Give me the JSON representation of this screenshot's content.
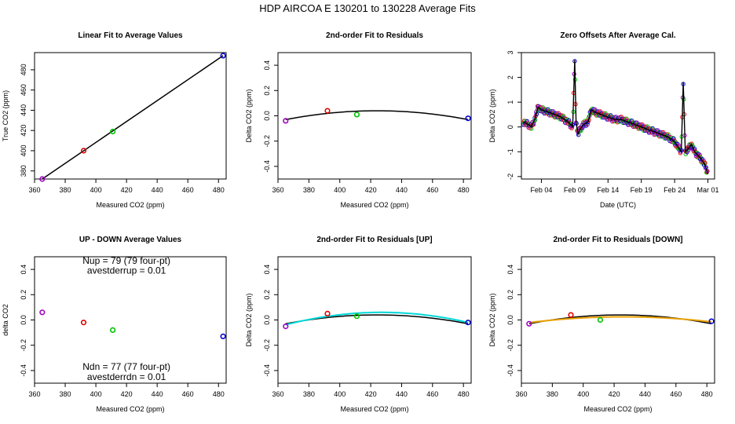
{
  "figure": {
    "title": "HDP    AIRCOA E   130201 to 130228   Average Fits"
  },
  "chart_data": [
    {
      "type": "scatter",
      "title": "Linear Fit to Average Values",
      "xlabel": "Measured CO2 (ppm)",
      "ylabel": "True CO2 (ppm)",
      "xlim": [
        360,
        485
      ],
      "ylim": [
        372,
        497
      ],
      "xticks": [
        360,
        380,
        400,
        420,
        440,
        460,
        480
      ],
      "xtick_labels": [
        "360",
        "380",
        "400",
        "420",
        "440",
        "460",
        "480"
      ],
      "yticks": [
        380,
        400,
        420,
        440,
        460,
        480
      ],
      "ytick_labels": [
        "380",
        "400",
        "420",
        "440",
        "460",
        "480"
      ],
      "points": [
        {
          "x": 365,
          "y": 372,
          "color": "#a000c0"
        },
        {
          "x": 392,
          "y": 400,
          "color": "#e00000"
        },
        {
          "x": 411,
          "y": 419,
          "color": "#00c000"
        },
        {
          "x": 483,
          "y": 494,
          "color": "#0000d0"
        }
      ],
      "lines": [
        {
          "name": "linear fit",
          "x": [
            365,
            483
          ],
          "y": [
            372,
            494
          ],
          "color": "#000000"
        }
      ]
    },
    {
      "type": "scatter",
      "title": "2nd-order Fit to Residuals",
      "xlabel": "Measured CO2 (ppm)",
      "ylabel": "Delta CO2 (ppm)",
      "xlim": [
        360,
        485
      ],
      "ylim": [
        -0.5,
        0.5
      ],
      "xticks": [
        360,
        380,
        400,
        420,
        440,
        460,
        480
      ],
      "xtick_labels": [
        "360",
        "380",
        "400",
        "420",
        "440",
        "460",
        "480"
      ],
      "yticks": [
        -0.4,
        -0.2,
        0,
        0.2,
        0.4
      ],
      "ytick_labels": [
        "-0.4",
        "-0.2",
        "0.0",
        "0.2",
        "0.4"
      ],
      "points": [
        {
          "x": 365,
          "y": -0.04,
          "color": "#a000c0"
        },
        {
          "x": 392,
          "y": 0.04,
          "color": "#e00000"
        },
        {
          "x": 411,
          "y": 0.01,
          "color": "#00c000"
        },
        {
          "x": 483,
          "y": -0.02,
          "color": "#0000d0"
        }
      ],
      "curves": [
        {
          "name": "quadratic fit",
          "xmin": 365,
          "xmax": 483,
          "vertex_x": 424,
          "peak": 0.04,
          "end_value": -0.03,
          "color": "#000000"
        }
      ]
    },
    {
      "type": "line",
      "title": "Zero Offsets After Average Cal.",
      "xlabel": "Date (UTC)",
      "ylabel": "Delta CO2 (ppm)",
      "xlim": [
        0,
        29
      ],
      "ylim": [
        -2.1,
        3.0
      ],
      "xticks": [
        3,
        8,
        13,
        18,
        23,
        28
      ],
      "xtick_labels": [
        "Feb 04",
        "Feb 09",
        "Feb 14",
        "Feb 19",
        "Feb 24",
        "Mar 01"
      ],
      "yticks": [
        -2,
        -1,
        0,
        1,
        2,
        3
      ],
      "ytick_labels": [
        "-2",
        "-1",
        "0",
        "1",
        "2",
        "3"
      ],
      "series": [
        {
          "name": "zero offset",
          "color": "#000000",
          "x": [
            0.3,
            1.0,
            1.5,
            2.0,
            2.5,
            3.0,
            4.0,
            5.0,
            6.0,
            7.0,
            7.7,
            8.0,
            8.2,
            8.5,
            8.8,
            9.3,
            10.0,
            10.5,
            11.0,
            12.0,
            13.0,
            14.0,
            15.0,
            16.0,
            17.0,
            18.0,
            19.0,
            20.0,
            21.0,
            22.0,
            23.0,
            23.5,
            24.0,
            24.3,
            24.6,
            25.0,
            25.5,
            26.0,
            27.0,
            27.5,
            28.0
          ],
          "y": [
            0.2,
            0.1,
            0.0,
            0.3,
            0.8,
            0.7,
            0.6,
            0.5,
            0.4,
            0.2,
            0.0,
            2.7,
            0.2,
            -0.3,
            -0.1,
            0.1,
            0.2,
            0.7,
            0.6,
            0.5,
            0.4,
            0.3,
            0.3,
            0.2,
            0.1,
            0.0,
            -0.1,
            -0.2,
            -0.3,
            -0.4,
            -0.6,
            -0.8,
            -1.0,
            1.8,
            -1.0,
            -0.9,
            -0.7,
            -1.0,
            -1.3,
            -1.5,
            -1.9
          ]
        }
      ],
      "point_colors": [
        "#0000d0",
        "#00c000",
        "#e00000",
        "#a000c0"
      ]
    },
    {
      "type": "scatter",
      "title": "UP - DOWN Average Values",
      "xlabel": "Measured CO2 (ppm)",
      "ylabel": "delta CO2",
      "xlim": [
        360,
        485
      ],
      "ylim": [
        -0.5,
        0.5
      ],
      "xticks": [
        360,
        380,
        400,
        420,
        440,
        460,
        480
      ],
      "xtick_labels": [
        "360",
        "380",
        "400",
        "420",
        "440",
        "460",
        "480"
      ],
      "yticks": [
        -0.4,
        -0.2,
        0,
        0.2,
        0.4
      ],
      "ytick_labels": [
        "-0.4",
        "-0.2",
        "0.0",
        "0.2",
        "0.4"
      ],
      "points": [
        {
          "x": 365,
          "y": 0.06,
          "color": "#a000c0"
        },
        {
          "x": 392,
          "y": -0.02,
          "color": "#e00000"
        },
        {
          "x": 411,
          "y": -0.08,
          "color": "#00c000"
        },
        {
          "x": 483,
          "y": -0.13,
          "color": "#0000d0"
        }
      ],
      "annotations": [
        {
          "text": "Nup = 79 (79 four-pt)",
          "x": 420,
          "y": 0.465
        },
        {
          "text": "avestderrup =  0.01",
          "x": 420,
          "y": 0.385
        },
        {
          "text": "Ndn = 77 (77 four-pt)",
          "x": 420,
          "y": -0.375
        },
        {
          "text": "avestderrdn =  0.01",
          "x": 420,
          "y": -0.455
        }
      ]
    },
    {
      "type": "scatter",
      "title": "2nd-order Fit to Residuals [UP]",
      "xlabel": "Measured CO2 (ppm)",
      "ylabel": "Delta CO2 (ppm)",
      "xlim": [
        360,
        485
      ],
      "ylim": [
        -0.5,
        0.5
      ],
      "xticks": [
        360,
        380,
        400,
        420,
        440,
        460,
        480
      ],
      "xtick_labels": [
        "360",
        "380",
        "400",
        "420",
        "440",
        "460",
        "480"
      ],
      "yticks": [
        -0.4,
        -0.2,
        0,
        0.2,
        0.4
      ],
      "ytick_labels": [
        "-0.4",
        "-0.2",
        "0.0",
        "0.2",
        "0.4"
      ],
      "points": [
        {
          "x": 365,
          "y": -0.05,
          "color": "#a000c0"
        },
        {
          "x": 392,
          "y": 0.05,
          "color": "#e00000"
        },
        {
          "x": 411,
          "y": 0.03,
          "color": "#00c000"
        },
        {
          "x": 483,
          "y": -0.02,
          "color": "#0000d0"
        }
      ],
      "curves": [
        {
          "name": "quadratic fit (all)",
          "xmin": 365,
          "xmax": 483,
          "vertex_x": 424,
          "peak": 0.04,
          "end_value": -0.03,
          "color": "#000000"
        },
        {
          "name": "quadratic fit (up)",
          "xmin": 365,
          "xmax": 483,
          "vertex_x": 427,
          "peak": 0.06,
          "end_value": -0.02,
          "color": "#00d8d8"
        }
      ]
    },
    {
      "type": "scatter",
      "title": "2nd-order Fit to Residuals [DOWN]",
      "xlabel": "Measured CO2 (ppm)",
      "ylabel": "Delta CO2 (ppm)",
      "xlim": [
        360,
        485
      ],
      "ylim": [
        -0.5,
        0.5
      ],
      "xticks": [
        360,
        380,
        400,
        420,
        440,
        460,
        480
      ],
      "xtick_labels": [
        "360",
        "380",
        "400",
        "420",
        "440",
        "460",
        "480"
      ],
      "yticks": [
        -0.4,
        -0.2,
        0,
        0.2,
        0.4
      ],
      "ytick_labels": [
        "-0.4",
        "-0.2",
        "0.0",
        "0.2",
        "0.4"
      ],
      "points": [
        {
          "x": 365,
          "y": -0.03,
          "color": "#a000c0"
        },
        {
          "x": 392,
          "y": 0.04,
          "color": "#e00000"
        },
        {
          "x": 411,
          "y": 0.0,
          "color": "#00c000"
        },
        {
          "x": 483,
          "y": -0.01,
          "color": "#0000d0"
        }
      ],
      "curves": [
        {
          "name": "quadratic fit (all)",
          "xmin": 365,
          "xmax": 483,
          "vertex_x": 424,
          "peak": 0.04,
          "end_value": -0.03,
          "color": "#000000"
        },
        {
          "name": "quadratic fit (down)",
          "xmin": 365,
          "xmax": 483,
          "vertex_x": 426,
          "peak": 0.025,
          "end_value": -0.015,
          "color": "#e8a000"
        }
      ]
    }
  ]
}
